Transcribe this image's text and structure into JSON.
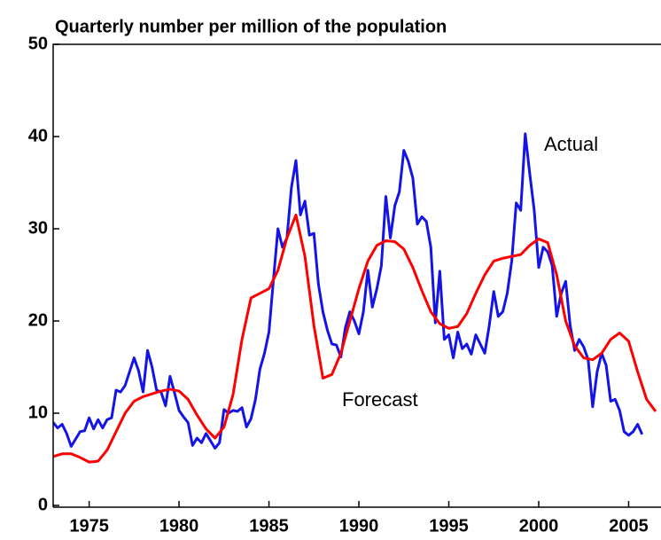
{
  "chart_data": {
    "type": "line",
    "title": "Quarterly number per million of the population",
    "xlim": [
      1973,
      2006.8
    ],
    "xticks": [
      1975,
      1980,
      1985,
      1990,
      1995,
      2000,
      2005
    ],
    "ylim": [
      0,
      50
    ],
    "yticks": [
      0,
      10,
      20,
      30,
      40,
      50
    ],
    "series": [
      {
        "name": "Actual",
        "color": "#1414e6",
        "x": [
          1973,
          1973.25,
          1973.5,
          1973.75,
          1974,
          1974.25,
          1974.5,
          1974.75,
          1975,
          1975.25,
          1975.5,
          1975.75,
          1976,
          1976.25,
          1976.5,
          1976.75,
          1977,
          1977.25,
          1977.5,
          1977.75,
          1978,
          1978.25,
          1978.5,
          1978.75,
          1979,
          1979.25,
          1979.5,
          1979.75,
          1980,
          1980.25,
          1980.5,
          1980.75,
          1981,
          1981.25,
          1981.5,
          1981.75,
          1982,
          1982.25,
          1982.5,
          1982.75,
          1983,
          1983.25,
          1983.5,
          1983.75,
          1984,
          1984.25,
          1984.5,
          1984.75,
          1985,
          1985.25,
          1985.5,
          1985.75,
          1986,
          1986.25,
          1986.5,
          1986.75,
          1987,
          1987.25,
          1987.5,
          1987.75,
          1988,
          1988.25,
          1988.5,
          1988.75,
          1989,
          1989.25,
          1989.5,
          1989.75,
          1990,
          1990.25,
          1990.5,
          1990.75,
          1991,
          1991.25,
          1991.5,
          1991.75,
          1992,
          1992.25,
          1992.5,
          1992.75,
          1993,
          1993.25,
          1993.5,
          1993.75,
          1994,
          1994.25,
          1994.5,
          1994.75,
          1995,
          1995.25,
          1995.5,
          1995.75,
          1996,
          1996.25,
          1996.5,
          1996.75,
          1997,
          1997.25,
          1997.5,
          1997.75,
          1998,
          1998.25,
          1998.5,
          1998.75,
          1999,
          1999.25,
          1999.5,
          1999.75,
          2000,
          2000.25,
          2000.5,
          2000.75,
          2001,
          2001.25,
          2001.5,
          2001.75,
          2002,
          2002.25,
          2002.5,
          2002.75,
          2003,
          2003.25,
          2003.5,
          2003.75,
          2004,
          2004.25,
          2004.5,
          2004.75,
          2005,
          2005.25,
          2005.5,
          2005.75
        ],
        "values": [
          9.0,
          8.4,
          8.8,
          7.8,
          6.4,
          7.2,
          8.0,
          8.1,
          9.5,
          8.3,
          9.3,
          8.4,
          9.3,
          9.5,
          12.5,
          12.3,
          13.0,
          14.5,
          16.0,
          14.6,
          12.3,
          16.8,
          15.0,
          12.5,
          12.3,
          10.8,
          14.0,
          12.2,
          10.3,
          9.6,
          9.0,
          6.5,
          7.3,
          6.8,
          7.8,
          7.0,
          6.2,
          6.8,
          10.4,
          10.0,
          10.3,
          10.2,
          10.6,
          8.5,
          9.4,
          11.5,
          14.8,
          16.5,
          18.8,
          24.5,
          30.0,
          28.0,
          29.0,
          34.5,
          37.4,
          31.5,
          33.0,
          29.3,
          29.5,
          24.0,
          21.0,
          19.0,
          17.5,
          17.4,
          16.1,
          19.3,
          21.0,
          20.0,
          18.6,
          21.0,
          25.5,
          21.5,
          23.5,
          26.0,
          33.5,
          29.0,
          32.5,
          34.0,
          38.5,
          37.3,
          35.5,
          30.5,
          31.3,
          30.8,
          28.0,
          19.8,
          25.4,
          18.0,
          18.5,
          16.0,
          18.8,
          17.0,
          17.5,
          16.4,
          18.5,
          17.5,
          16.5,
          19.5,
          23.2,
          20.5,
          21.0,
          23.0,
          26.5,
          32.8,
          32.0,
          40.3,
          36.0,
          32.0,
          25.8,
          28.0,
          27.5,
          26.0,
          20.5,
          23.0,
          24.3,
          19.5,
          16.8,
          18.0,
          17.2,
          15.8,
          10.7,
          14.5,
          16.5,
          15.2,
          11.3,
          11.5,
          10.3,
          8.0,
          7.6,
          8.0,
          8.8,
          7.7
        ]
      },
      {
        "name": "Forecast",
        "color": "#ff0000",
        "x": [
          1973,
          1973.5,
          1974,
          1974.5,
          1975,
          1975.5,
          1976,
          1976.5,
          1977,
          1977.5,
          1978,
          1978.5,
          1979,
          1979.5,
          1980,
          1980.5,
          1981,
          1981.5,
          1982,
          1982.5,
          1983,
          1983.5,
          1984,
          1984.5,
          1985,
          1985.5,
          1986,
          1986.5,
          1987,
          1987.5,
          1988,
          1988.5,
          1989,
          1989.5,
          1990,
          1990.5,
          1991,
          1991.5,
          1992,
          1992.5,
          1993,
          1993.5,
          1994,
          1994.5,
          1995,
          1995.5,
          1996,
          1996.5,
          1997,
          1997.5,
          1998,
          1998.5,
          1999,
          1999.5,
          2000,
          2000.5,
          2001,
          2001.5,
          2002,
          2002.5,
          2003,
          2003.5,
          2004,
          2004.5,
          2005,
          2005.5,
          2006,
          2006.5
        ],
        "values": [
          5.3,
          5.6,
          5.6,
          5.2,
          4.7,
          4.8,
          6.0,
          8.0,
          10.0,
          11.3,
          11.8,
          12.1,
          12.4,
          12.6,
          12.4,
          11.5,
          9.8,
          8.3,
          7.3,
          8.5,
          12.0,
          18.0,
          22.5,
          23.0,
          23.5,
          25.5,
          29.0,
          31.5,
          27.0,
          19.5,
          13.8,
          14.2,
          16.5,
          20.0,
          23.5,
          26.5,
          28.2,
          28.7,
          28.6,
          27.8,
          25.8,
          23.3,
          21.0,
          19.7,
          19.2,
          19.4,
          20.8,
          23.0,
          25.0,
          26.5,
          26.8,
          27.0,
          27.2,
          28.2,
          28.9,
          28.5,
          25.0,
          20.0,
          17.3,
          16.0,
          15.8,
          16.5,
          18.0,
          18.7,
          17.8,
          14.5,
          11.5,
          10.2
        ]
      }
    ]
  }
}
